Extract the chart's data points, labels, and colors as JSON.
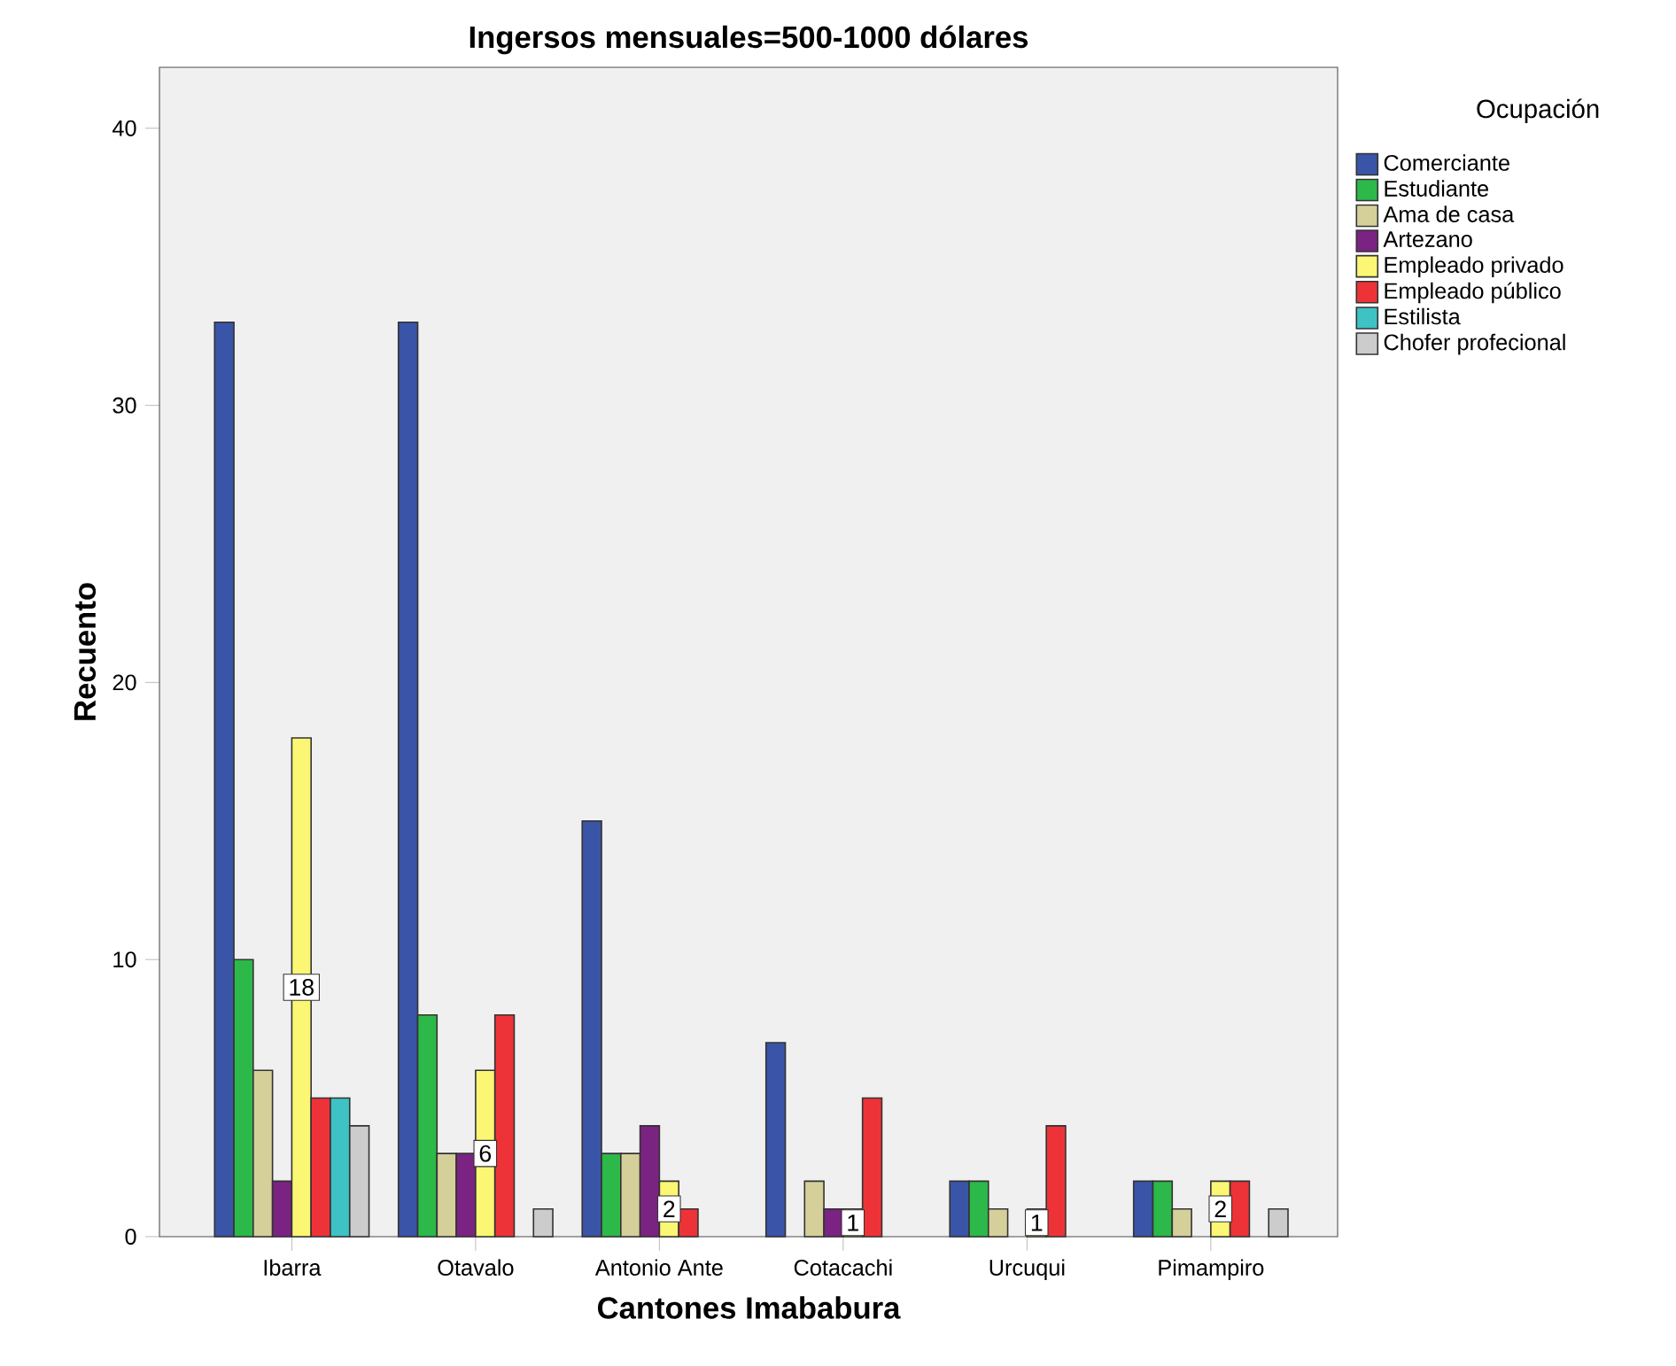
{
  "chart_data": {
    "type": "bar",
    "title": "Ingersos mensuales=500-1000 dólares",
    "xlabel": "Cantones Imababura",
    "ylabel": "Recuento",
    "legend_title": "Ocupación",
    "categories": [
      "Ibarra",
      "Otavalo",
      "Antonio Ante",
      "Cotacachi",
      "Urcuqui",
      "Pimampiro"
    ],
    "series": [
      {
        "name": "Comerciante",
        "color": "#3a55a8",
        "values": [
          33,
          33,
          15,
          7,
          2,
          2
        ]
      },
      {
        "name": "Estudiante",
        "color": "#2db84a",
        "values": [
          10,
          8,
          3,
          null,
          2,
          2
        ]
      },
      {
        "name": "Ama de casa",
        "color": "#d5d09a",
        "values": [
          6,
          3,
          3,
          2,
          1,
          1
        ]
      },
      {
        "name": "Artezano",
        "color": "#7b2382",
        "values": [
          2,
          3,
          4,
          1,
          null,
          null
        ]
      },
      {
        "name": "Empleado privado",
        "color": "#fbf674",
        "values": [
          18,
          6,
          2,
          1,
          1,
          2
        ],
        "value_labels": [
          "18",
          "6",
          "2",
          "1",
          "1",
          "2"
        ]
      },
      {
        "name": "Empleado público",
        "color": "#ee3338",
        "values": [
          5,
          8,
          1,
          5,
          4,
          2
        ]
      },
      {
        "name": "Estilista",
        "color": "#3ec2c4",
        "values": [
          5,
          null,
          null,
          null,
          null,
          null
        ]
      },
      {
        "name": "Chofer profecional",
        "color": "#cccccc",
        "values": [
          4,
          1,
          null,
          null,
          null,
          1
        ]
      }
    ],
    "ylim": [
      0,
      42.2
    ],
    "yticks": [
      0,
      10,
      20,
      30,
      40
    ],
    "grid": false,
    "legend": "right"
  }
}
